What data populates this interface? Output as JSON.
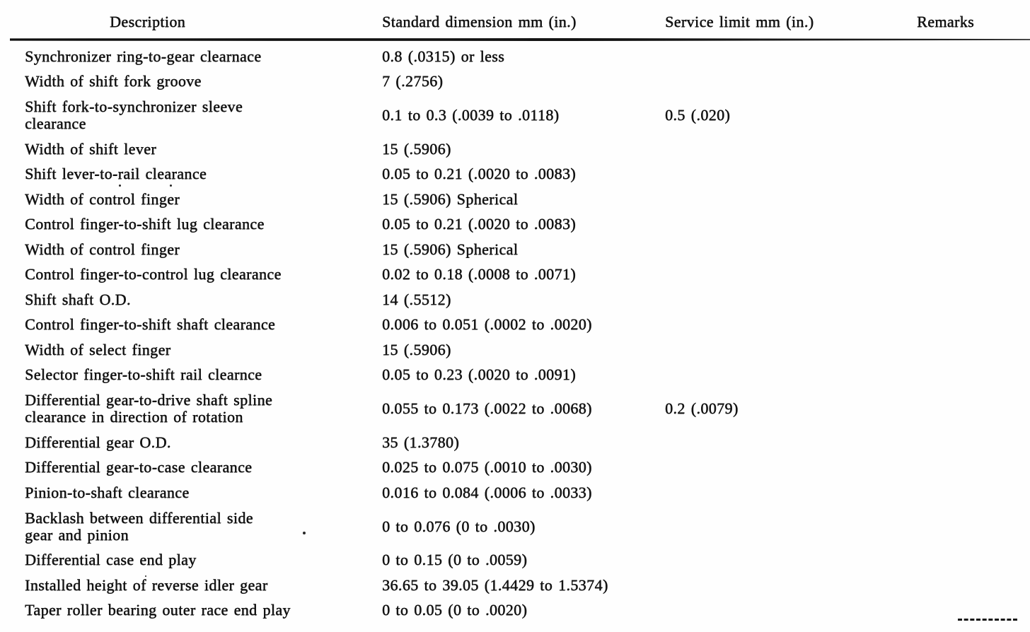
{
  "table": {
    "headers": [
      "Description",
      "Standard dimension mm (in.)",
      "Service limit mm (in.)",
      "Remarks"
    ],
    "rows": [
      {
        "description": "Synchronizer ring-to-gear clearnace",
        "standard": "0.8 (.0315) or less",
        "service_limit": "",
        "remarks": ""
      },
      {
        "description": "Width of shift fork groove",
        "standard": "7 (.2756)",
        "service_limit": "",
        "remarks": ""
      },
      {
        "description": "Shift fork-to-synchronizer sleeve\nclearance",
        "standard": "0.1 to 0.3 (.0039 to .0118)",
        "service_limit": "0.5 (.020)",
        "remarks": ""
      },
      {
        "description": "Width of shift lever",
        "standard": "15 (.5906)",
        "service_limit": "",
        "remarks": ""
      },
      {
        "description": "Shift lever-to-rail clearance",
        "standard": "0.05 to 0.21 (.0020 to .0083)",
        "service_limit": "",
        "remarks": ""
      },
      {
        "description": "Width of control finger",
        "standard": "15 (.5906) Spherical",
        "service_limit": "",
        "remarks": ""
      },
      {
        "description": "Control finger-to-shift lug clearance",
        "standard": "0.05 to 0.21 (.0020 to .0083)",
        "service_limit": "",
        "remarks": ""
      },
      {
        "description": "Width of control finger",
        "standard": "15 (.5906) Spherical",
        "service_limit": "",
        "remarks": ""
      },
      {
        "description": "Control finger-to-control lug clearance",
        "standard": "0.02 to 0.18 (.0008 to .0071)",
        "service_limit": "",
        "remarks": ""
      },
      {
        "description": "Shift shaft O.D.",
        "standard": "14 (.5512)",
        "service_limit": "",
        "remarks": ""
      },
      {
        "description": "Control finger-to-shift shaft clearance",
        "standard": "0.006 to 0.051 (.0002 to .0020)",
        "service_limit": "",
        "remarks": ""
      },
      {
        "description": "Width of select finger",
        "standard": "15 (.5906)",
        "service_limit": "",
        "remarks": ""
      },
      {
        "description": "Selector finger-to-shift rail clearnce",
        "standard": "0.05 to 0.23 (.0020 to .0091)",
        "service_limit": "",
        "remarks": ""
      },
      {
        "description": "Differential gear-to-drive shaft spline\nclearance in direction of rotation",
        "standard": "0.055 to 0.173 (.0022 to .0068)",
        "service_limit": "0.2 (.0079)",
        "remarks": ""
      },
      {
        "description": "Differential gear O.D.",
        "standard": "35 (1.3780)",
        "service_limit": "",
        "remarks": ""
      },
      {
        "description": "Differential gear-to-case clearance",
        "standard": "0.025 to 0.075 (.0010 to .0030)",
        "service_limit": "",
        "remarks": ""
      },
      {
        "description": "Pinion-to-shaft clearance",
        "standard": "0.016 to 0.084 (.0006 to .0033)",
        "service_limit": "",
        "remarks": ""
      },
      {
        "description": "Backlash between differential side\ngear and pinion",
        "standard": "0 to 0.076 (0 to .0030)",
        "service_limit": "",
        "remarks": ""
      },
      {
        "description": "Differential case end play",
        "standard": "0 to 0.15 (0 to .0059)",
        "service_limit": "",
        "remarks": ""
      },
      {
        "description": "Installed height of reverse idler gear",
        "standard": "36.65 to 39.05 (1.4429 to 1.5374)",
        "service_limit": "",
        "remarks": ""
      },
      {
        "description": "Taper roller bearing outer race end play",
        "standard": "0 to 0.05 (0 to .0020)",
        "service_limit": "",
        "remarks": ""
      }
    ]
  }
}
